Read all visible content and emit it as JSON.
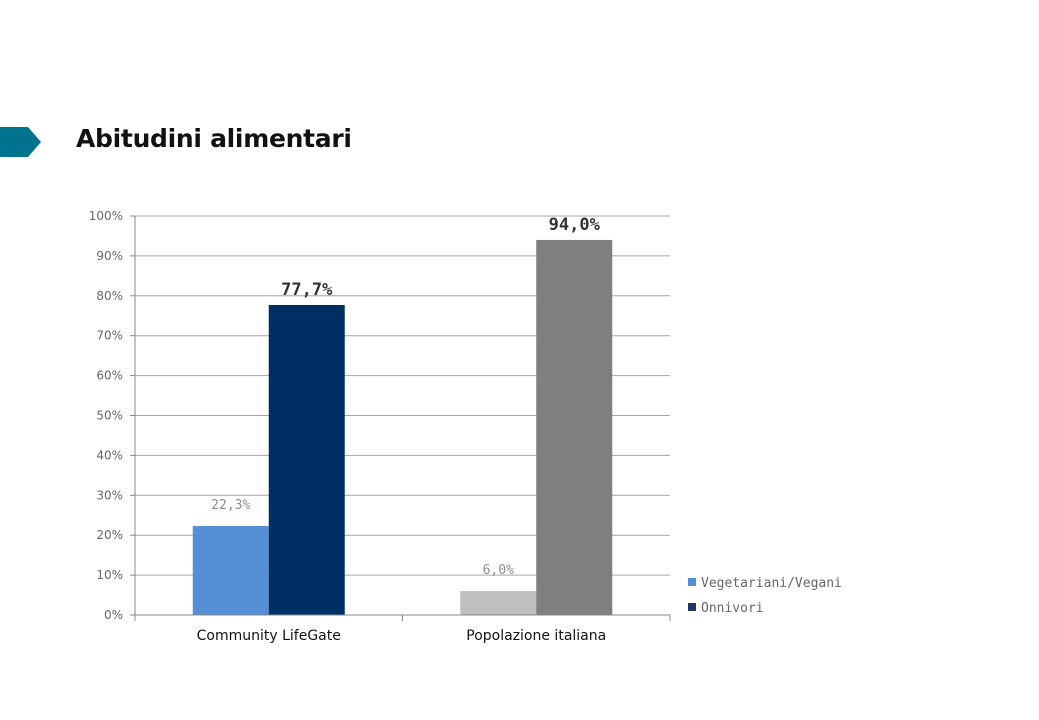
{
  "page": {
    "title": "Abitudini alimentari",
    "accent_color": "#00748f"
  },
  "chart_data": {
    "type": "bar",
    "categories": [
      "Community LifeGate",
      "Popolazione italiana"
    ],
    "series": [
      {
        "name": "Vegetariani/Vegani",
        "values": [
          22.3,
          6.0
        ],
        "labels": [
          "22,3%",
          "6,0%"
        ],
        "colors": [
          "#558ed5",
          "#bfbfbf"
        ],
        "legend_color": "#558ed5"
      },
      {
        "name": "Onnivori",
        "values": [
          77.7,
          94.0
        ],
        "labels": [
          "77,7%",
          "94,0%"
        ],
        "colors": [
          "#002f63",
          "#7f7f7f"
        ],
        "legend_color": "#1f3864"
      }
    ],
    "yticks": [
      "0%",
      "10%",
      "20%",
      "30%",
      "40%",
      "50%",
      "60%",
      "70%",
      "80%",
      "90%",
      "100%"
    ],
    "ylim": [
      0,
      100
    ],
    "grid": true,
    "legend_position": "right-bottom"
  }
}
